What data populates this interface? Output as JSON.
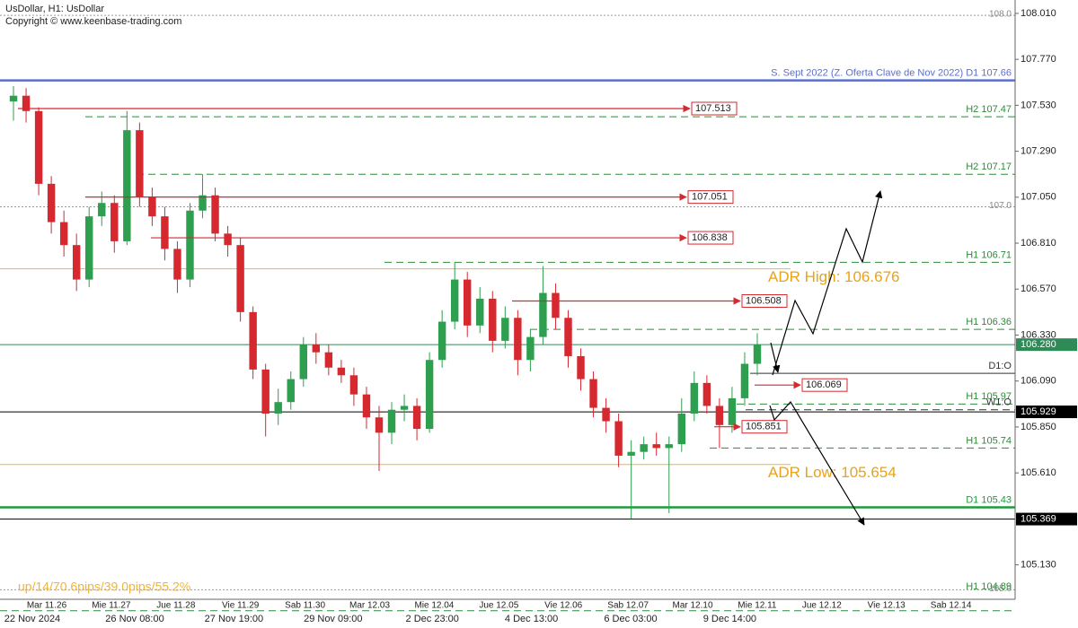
{
  "chart_data": {
    "type": "candlestick",
    "title": "UsDollar, H1:  UsDollar",
    "subtitle": "Copyright © www.keenbase-trading.com",
    "stats": "up/14/70.6pips/39.0pips/55.2%",
    "ylim": [
      104.95,
      108.08
    ],
    "yticks": [
      {
        "value": 108.01,
        "label": "108.010"
      },
      {
        "value": 107.77,
        "label": "107.770"
      },
      {
        "value": 107.53,
        "label": "107.530"
      },
      {
        "value": 107.29,
        "label": "107.290"
      },
      {
        "value": 107.05,
        "label": "107.050"
      },
      {
        "value": 106.81,
        "label": "106.810"
      },
      {
        "value": 106.57,
        "label": "106.570"
      },
      {
        "value": 106.33,
        "label": "106.330"
      },
      {
        "value": 106.09,
        "label": "106.090"
      },
      {
        "value": 105.85,
        "label": "105.850"
      },
      {
        "value": 105.61,
        "label": "105.610"
      },
      {
        "value": 105.13,
        "label": "105.130"
      }
    ],
    "round_levels": [
      {
        "value": 108,
        "label": "108.0"
      },
      {
        "value": 107,
        "label": "107.0"
      },
      {
        "value": 105,
        "label": "105.0"
      }
    ],
    "day_labels": [
      "Mar 11.26",
      "Mie 11.27",
      "Jue 11.28",
      "Vie 11.29",
      "Sab 11.30",
      "Mar 12.03",
      "Mie 12.04",
      "Jue 12.05",
      "Vie 12.06",
      "Sab 12.07",
      "Mar 12.10",
      "Mie 12.11",
      "Jue 12.12",
      "Vie 12.13",
      "Sab 12.14"
    ],
    "date_labels": [
      "22 Nov 2024",
      "26 Nov 08:00",
      "27 Nov 19:00",
      "29 Nov 09:00",
      "2 Dec 23:00",
      "4 Dec 13:00",
      "6 Dec 03:00",
      "9 Dec 14:00"
    ],
    "up_color": "#2e9e4f",
    "down_color": "#d6282f",
    "open": [
      107.55,
      107.58,
      107.5,
      107.12,
      106.92,
      106.8,
      106.62,
      106.95,
      107.02,
      106.82,
      107.4,
      107.05,
      106.95,
      106.78,
      106.62,
      106.98,
      107.06,
      106.86,
      106.8,
      106.45,
      106.15,
      105.92,
      105.98,
      106.1,
      106.28,
      106.24,
      106.16,
      106.12,
      106.02,
      105.9,
      105.82,
      105.94,
      105.96,
      105.84,
      106.2,
      106.4,
      106.62,
      106.38,
      106.52,
      106.3,
      106.42,
      106.2,
      106.32,
      106.55,
      106.42,
      106.22,
      106.1,
      105.95,
      105.88,
      105.7,
      105.72,
      105.76,
      105.74,
      105.76,
      105.92,
      106.08,
      105.96,
      105.86,
      106.0,
      106.18
    ],
    "high": [
      107.63,
      107.62,
      107.52,
      107.16,
      106.98,
      106.86,
      107.0,
      107.08,
      107.06,
      107.5,
      107.44,
      107.1,
      107.0,
      106.82,
      107.02,
      107.17,
      107.1,
      106.9,
      106.84,
      106.48,
      106.18,
      106.05,
      106.14,
      106.32,
      106.34,
      106.28,
      106.2,
      106.16,
      106.06,
      105.96,
      105.98,
      106.02,
      106.0,
      106.24,
      106.46,
      106.71,
      106.66,
      106.58,
      106.56,
      106.48,
      106.46,
      106.36,
      106.69,
      106.6,
      106.46,
      106.26,
      106.14,
      106.0,
      105.92,
      105.78,
      105.8,
      105.82,
      105.8,
      106.0,
      106.14,
      106.12,
      106.0,
      106.06,
      106.24,
      106.34
    ],
    "low": [
      107.45,
      107.44,
      107.06,
      106.86,
      106.74,
      106.56,
      106.58,
      106.9,
      106.76,
      106.8,
      107.0,
      106.9,
      106.72,
      106.55,
      106.58,
      106.94,
      106.82,
      106.74,
      106.4,
      106.1,
      105.8,
      105.86,
      105.94,
      106.06,
      106.18,
      106.12,
      106.08,
      105.96,
      105.84,
      105.62,
      105.76,
      105.88,
      105.78,
      105.82,
      106.16,
      106.36,
      106.32,
      106.34,
      106.24,
      106.26,
      106.12,
      106.14,
      106.28,
      106.36,
      106.16,
      106.04,
      105.9,
      105.82,
      105.64,
      105.37,
      105.68,
      105.7,
      105.4,
      105.72,
      105.88,
      105.92,
      105.74,
      105.82,
      105.96,
      106.12
    ],
    "close": [
      107.58,
      107.5,
      107.12,
      106.92,
      106.8,
      106.62,
      106.95,
      107.02,
      106.82,
      107.4,
      107.05,
      106.95,
      106.78,
      106.62,
      106.98,
      107.06,
      106.86,
      106.8,
      106.45,
      106.15,
      105.92,
      105.98,
      106.1,
      106.28,
      106.24,
      106.16,
      106.12,
      106.02,
      105.9,
      105.82,
      105.94,
      105.96,
      105.84,
      106.2,
      106.4,
      106.62,
      106.38,
      106.52,
      106.3,
      106.42,
      106.2,
      106.32,
      106.55,
      106.42,
      106.22,
      106.1,
      105.95,
      105.88,
      105.7,
      105.72,
      105.76,
      105.74,
      105.76,
      105.92,
      106.08,
      105.96,
      105.86,
      106.0,
      106.18,
      106.28
    ],
    "levels": [
      {
        "label": "S. Sept 2022 (Z. Oferta Clave de Nov 2022) D1 107.66",
        "value": 107.66,
        "color": "#5a6fd0",
        "dashed": false
      },
      {
        "label": "H2 107.47",
        "value": 107.47,
        "color": "#2e8b3a",
        "dashed": true
      },
      {
        "label": "H2 107.17",
        "value": 107.17,
        "color": "#2e8b3a",
        "dashed": true
      },
      {
        "label": "H1 106.71",
        "value": 106.71,
        "color": "#2e8b3a",
        "dashed": true
      },
      {
        "label": "H1 106.36",
        "value": 106.36,
        "color": "#2e8b3a",
        "dashed": true
      },
      {
        "label": "D1:O",
        "value": 106.13,
        "color": "#333333",
        "dashed": false
      },
      {
        "label": "H1 105.97",
        "value": 105.97,
        "color": "#2e8b3a",
        "dashed": true
      },
      {
        "label": "W1:O",
        "value": 105.94,
        "color": "#333333",
        "dashed": true
      },
      {
        "label": "H1 105.74",
        "value": 105.74,
        "color": "#2e8b3a",
        "dashed": true
      },
      {
        "label": "D1 105.43",
        "value": 105.43,
        "color": "#1f9a3a",
        "dashed": false
      },
      {
        "label": "H1 104.89",
        "value": 104.89,
        "color": "#2e8b3a",
        "dashed": true
      }
    ],
    "adr": [
      {
        "label": "ADR High: 106.676",
        "value": 106.676
      },
      {
        "label": "ADR Low: 105.654",
        "value": 105.654
      }
    ],
    "adr_color": "#f0b43c",
    "axis_tags": [
      {
        "value": 106.28,
        "label": "106.280",
        "color": "#2e8b57"
      },
      {
        "value": 105.929,
        "label": "105.929",
        "color": "#000000"
      },
      {
        "value": 105.369,
        "label": "105.369",
        "color": "#000000"
      }
    ],
    "targets": [
      107.513,
      107.051,
      106.838,
      106.508,
      106.069,
      105.851
    ],
    "target_color": "#d6282f"
  }
}
